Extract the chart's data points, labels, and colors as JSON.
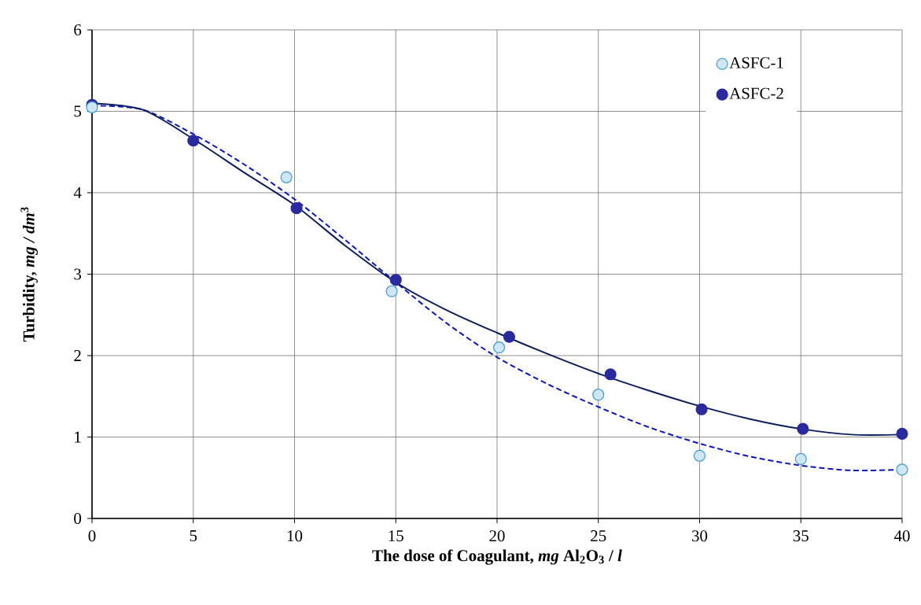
{
  "chart_data": {
    "type": "scatter",
    "xlabel": "The dose of Coagulant, *mg* Al$_{2}$O$_{3}$ / *l*",
    "ylabel": "Turbidity, *mg / dm*$^{3}$",
    "xlim": [
      0,
      40
    ],
    "xticks": [
      0,
      5,
      10,
      15,
      20,
      25,
      30,
      35,
      40
    ],
    "ylim": [
      0,
      6
    ],
    "yticks": [
      0,
      1,
      2,
      3,
      4,
      5,
      6
    ],
    "grid": true,
    "legend": "top right",
    "series": [
      {
        "name": "ASFC-1",
        "marker": "circle",
        "color": "#3a9ad9",
        "x": [
          0,
          5,
          9.6,
          14.8,
          20.1,
          25,
          30,
          35,
          40
        ],
        "values": [
          5.05,
          null,
          4.19,
          2.79,
          2.1,
          1.52,
          0.77,
          0.73,
          0.6
        ]
      },
      {
        "name": "ASFC-2",
        "marker": "circle",
        "color": "#2a2aa0",
        "x": [
          0,
          5,
          10.1,
          15,
          20.6,
          25.6,
          30.1,
          35.1,
          40
        ],
        "values": [
          5.08,
          4.64,
          3.81,
          2.93,
          2.23,
          1.77,
          1.34,
          1.1,
          1.04
        ]
      },
      {
        "type": "line",
        "marker": "none",
        "line_style": "dashed",
        "color": "#0a14c8",
        "x": [
          0,
          2.5,
          5,
          7.5,
          10,
          12.5,
          15,
          17.5,
          20,
          22.5,
          25,
          27.5,
          30,
          32.5,
          35,
          37.5,
          40
        ],
        "values": [
          5.07,
          5.02,
          4.72,
          4.35,
          3.92,
          3.42,
          2.9,
          2.4,
          1.98,
          1.65,
          1.37,
          1.12,
          0.92,
          0.76,
          0.65,
          0.59,
          0.6
        ]
      },
      {
        "type": "line",
        "marker": "none",
        "line_style": "solid",
        "color": "#0b1f5e",
        "x": [
          0,
          2.5,
          5,
          7.5,
          10,
          12.5,
          15,
          17.5,
          20,
          22.5,
          25,
          27.5,
          30,
          32.5,
          35,
          37.5,
          40
        ],
        "values": [
          5.1,
          5.02,
          4.66,
          4.25,
          3.85,
          3.35,
          2.9,
          2.56,
          2.28,
          2.02,
          1.78,
          1.57,
          1.38,
          1.22,
          1.1,
          1.03,
          1.03
        ]
      }
    ]
  }
}
